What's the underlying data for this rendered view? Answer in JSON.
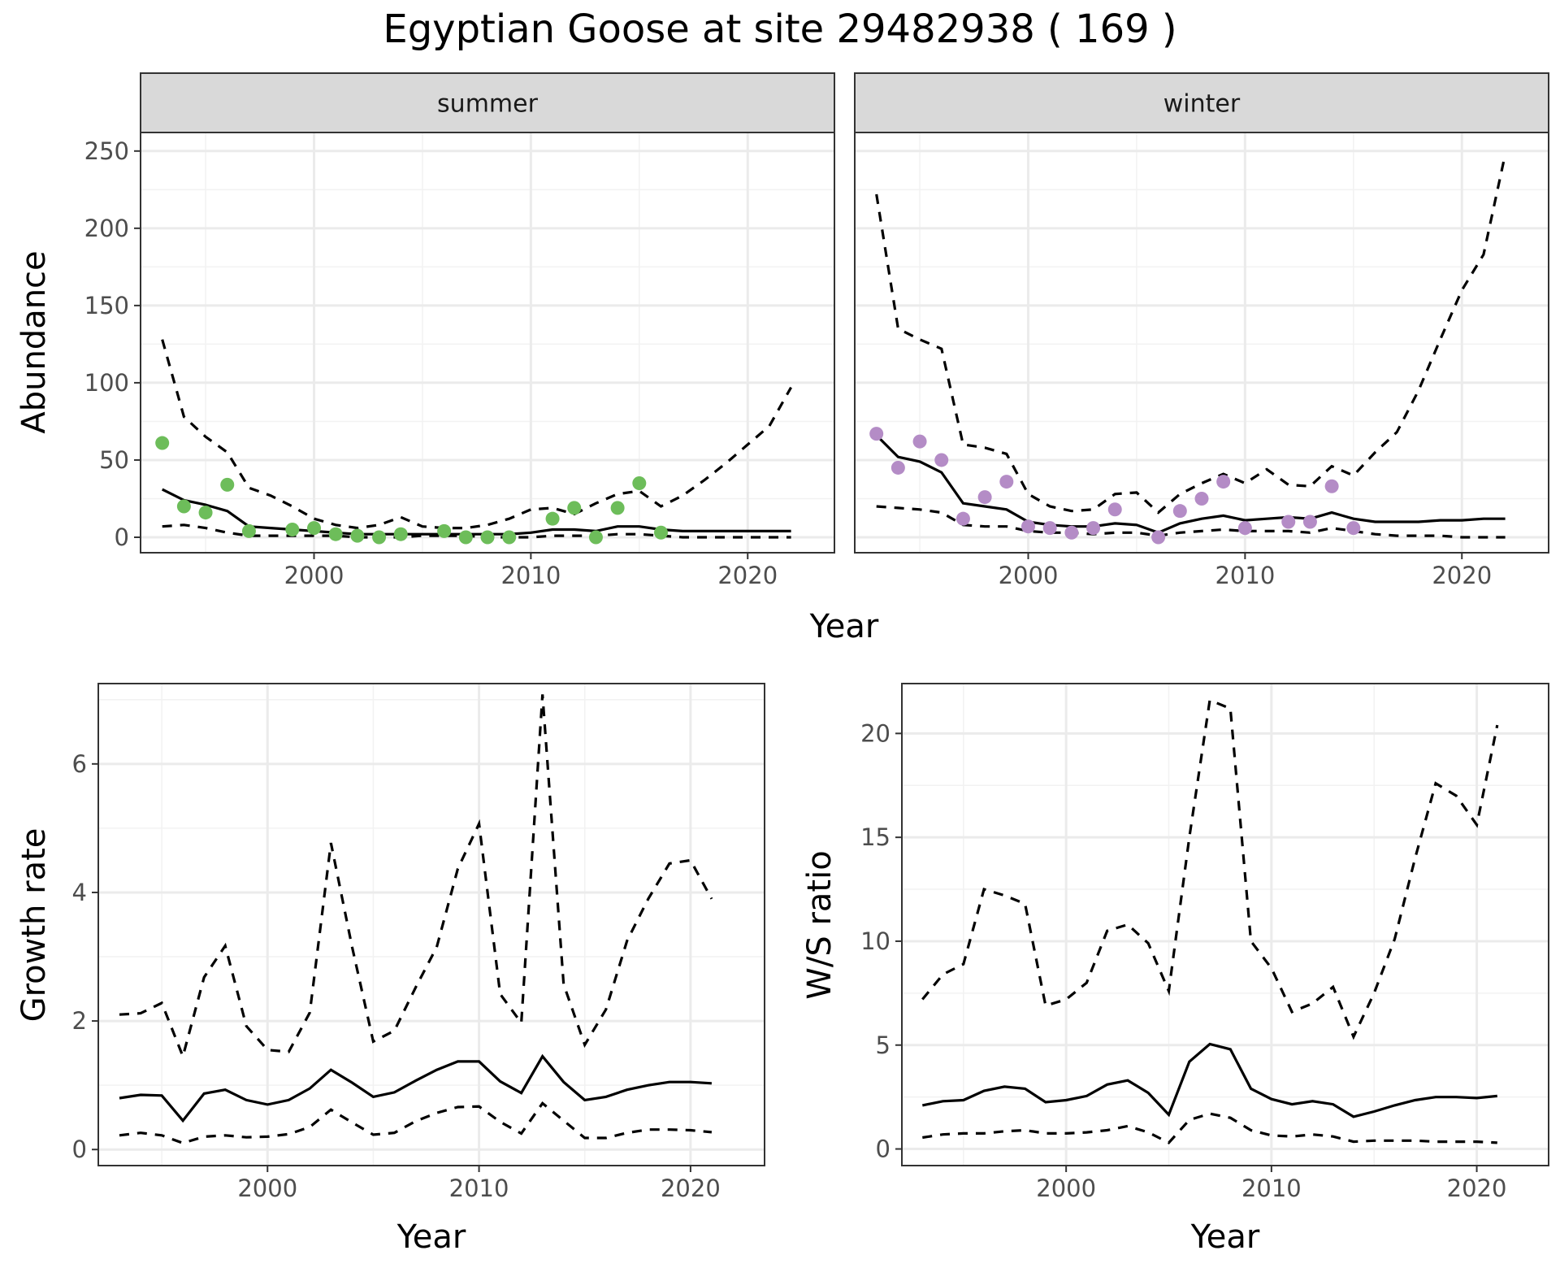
{
  "title": "Egyptian Goose at site 29482938 ( 169 )",
  "colors": {
    "summer_points": "#6dbd5a",
    "winter_points": "#b48cc6",
    "strip_fill": "#d9d9d9"
  },
  "chart_data": [
    {
      "id": "summer",
      "type": "line",
      "facet_label": "summer",
      "xlabel": "Year",
      "ylabel": "Abundance",
      "xlim": [
        1992,
        2024
      ],
      "ylim": [
        -10,
        262
      ],
      "xticks": [
        2000,
        2010,
        2020
      ],
      "yticks": [
        0,
        50,
        100,
        150,
        200,
        250
      ],
      "grid": true,
      "x": [
        1993,
        1994,
        1995,
        1996,
        1997,
        1998,
        1999,
        2000,
        2001,
        2002,
        2003,
        2004,
        2005,
        2006,
        2007,
        2008,
        2009,
        2010,
        2011,
        2012,
        2013,
        2014,
        2015,
        2016,
        2017,
        2018,
        2019,
        2020,
        2021,
        2022
      ],
      "series": [
        {
          "style": "solid",
          "values": [
            31,
            24,
            21,
            17,
            7,
            6,
            5,
            4,
            3,
            2,
            2,
            2,
            2,
            2,
            2,
            2,
            2,
            3,
            5,
            5,
            4,
            7,
            7,
            5,
            4,
            4,
            4,
            4,
            4,
            4
          ]
        },
        {
          "style": "dashed",
          "values": [
            128,
            78,
            65,
            55,
            32,
            27,
            20,
            12,
            8,
            6,
            8,
            13,
            7,
            6,
            6,
            8,
            12,
            18,
            19,
            15,
            22,
            28,
            30,
            20,
            27,
            37,
            48,
            60,
            72,
            97
          ]
        },
        {
          "style": "dashed",
          "values": [
            7,
            8,
            6,
            3,
            1,
            1,
            1,
            1,
            1,
            0,
            0,
            0,
            1,
            1,
            1,
            0,
            0,
            0,
            1,
            1,
            1,
            2,
            2,
            1,
            0,
            0,
            0,
            0,
            0,
            0
          ]
        }
      ],
      "points": {
        "x": [
          1993,
          1994,
          1995,
          1996,
          1997,
          1999,
          2000,
          2001,
          2002,
          2003,
          2004,
          2006,
          2007,
          2008,
          2009,
          2011,
          2012,
          2013,
          2014,
          2015,
          2016
        ],
        "y": [
          61,
          20,
          16,
          34,
          4,
          5,
          6,
          2,
          1,
          0,
          2,
          4,
          0,
          0,
          0,
          12,
          19,
          0,
          19,
          35,
          3
        ]
      }
    },
    {
      "id": "winter",
      "type": "line",
      "facet_label": "winter",
      "xlabel": "Year",
      "ylabel": "Abundance",
      "xlim": [
        1992,
        2024
      ],
      "ylim": [
        -10,
        262
      ],
      "xticks": [
        2000,
        2010,
        2020
      ],
      "yticks": [
        0,
        50,
        100,
        150,
        200,
        250
      ],
      "grid": true,
      "x": [
        1993,
        1994,
        1995,
        1996,
        1997,
        1998,
        1999,
        2000,
        2001,
        2002,
        2003,
        2004,
        2005,
        2006,
        2007,
        2008,
        2009,
        2010,
        2011,
        2012,
        2013,
        2014,
        2015,
        2016,
        2017,
        2018,
        2019,
        2020,
        2021,
        2022
      ],
      "series": [
        {
          "style": "solid",
          "values": [
            66,
            52,
            49,
            42,
            22,
            20,
            18,
            10,
            8,
            7,
            7,
            9,
            8,
            3,
            9,
            12,
            14,
            11,
            12,
            13,
            12,
            16,
            12,
            10,
            10,
            10,
            11,
            11,
            12,
            12
          ]
        },
        {
          "style": "dashed",
          "values": [
            222,
            135,
            128,
            122,
            60,
            58,
            54,
            28,
            20,
            17,
            18,
            28,
            29,
            16,
            28,
            35,
            41,
            35,
            44,
            34,
            33,
            46,
            40,
            55,
            68,
            95,
            128,
            160,
            183,
            248
          ]
        },
        {
          "style": "dashed",
          "values": [
            20,
            19,
            18,
            16,
            8,
            7,
            7,
            4,
            3,
            3,
            2,
            3,
            3,
            1,
            3,
            4,
            5,
            4,
            4,
            4,
            3,
            6,
            4,
            2,
            1,
            1,
            1,
            0,
            0,
            0
          ]
        }
      ],
      "points": {
        "x": [
          1993,
          1994,
          1995,
          1996,
          1997,
          1998,
          1999,
          2000,
          2001,
          2002,
          2003,
          2004,
          2006,
          2007,
          2008,
          2009,
          2010,
          2012,
          2013,
          2014,
          2015
        ],
        "y": [
          67,
          45,
          62,
          50,
          12,
          26,
          36,
          7,
          6,
          3,
          6,
          18,
          0,
          17,
          25,
          36,
          6,
          10,
          10,
          33,
          6
        ]
      }
    },
    {
      "id": "growth",
      "type": "line",
      "xlabel": "Year",
      "ylabel": "Growth rate",
      "xlim": [
        1992,
        2023.5
      ],
      "ylim": [
        -0.25,
        7.25
      ],
      "xticks": [
        2000,
        2010,
        2020
      ],
      "yticks": [
        0,
        2,
        4,
        6
      ],
      "grid": true,
      "x": [
        1993,
        1994,
        1995,
        1996,
        1997,
        1998,
        1999,
        2000,
        2001,
        2002,
        2003,
        2004,
        2005,
        2006,
        2007,
        2008,
        2009,
        2010,
        2011,
        2012,
        2013,
        2014,
        2015,
        2016,
        2017,
        2018,
        2019,
        2020,
        2021
      ],
      "series": [
        {
          "style": "solid",
          "values": [
            0.8,
            0.85,
            0.84,
            0.45,
            0.87,
            0.93,
            0.77,
            0.7,
            0.77,
            0.95,
            1.24,
            1.04,
            0.82,
            0.89,
            1.07,
            1.24,
            1.37,
            1.37,
            1.06,
            0.88,
            1.45,
            1.05,
            0.77,
            0.82,
            0.93,
            1.0,
            1.05,
            1.05,
            1.03
          ]
        },
        {
          "style": "dashed",
          "values": [
            2.1,
            2.12,
            2.28,
            1.45,
            2.68,
            3.17,
            1.92,
            1.55,
            1.52,
            2.13,
            4.77,
            3.15,
            1.68,
            1.85,
            2.52,
            3.15,
            4.37,
            5.07,
            2.42,
            1.97,
            7.08,
            2.57,
            1.63,
            2.18,
            3.25,
            3.9,
            4.45,
            4.5,
            3.9
          ]
        },
        {
          "style": "dashed",
          "values": [
            0.22,
            0.26,
            0.22,
            0.1,
            0.2,
            0.22,
            0.19,
            0.2,
            0.24,
            0.35,
            0.62,
            0.42,
            0.23,
            0.26,
            0.44,
            0.57,
            0.66,
            0.67,
            0.43,
            0.25,
            0.72,
            0.45,
            0.18,
            0.18,
            0.26,
            0.31,
            0.31,
            0.3,
            0.27
          ]
        }
      ]
    },
    {
      "id": "ratio",
      "type": "line",
      "xlabel": "Year",
      "ylabel": "W/S ratio",
      "xlim": [
        1992,
        2023.5
      ],
      "ylim": [
        -0.8,
        22.4
      ],
      "xticks": [
        2000,
        2010,
        2020
      ],
      "yticks": [
        0,
        5,
        10,
        15,
        20
      ],
      "grid": true,
      "x": [
        1993,
        1994,
        1995,
        1996,
        1997,
        1998,
        1999,
        2000,
        2001,
        2002,
        2003,
        2004,
        2005,
        2006,
        2007,
        2008,
        2009,
        2010,
        2011,
        2012,
        2013,
        2014,
        2015,
        2016,
        2017,
        2018,
        2019,
        2020,
        2021
      ],
      "series": [
        {
          "style": "solid",
          "values": [
            2.1,
            2.3,
            2.35,
            2.8,
            3.0,
            2.9,
            2.25,
            2.35,
            2.55,
            3.1,
            3.3,
            2.7,
            1.65,
            4.2,
            5.05,
            4.8,
            2.9,
            2.4,
            2.15,
            2.3,
            2.15,
            1.55,
            1.8,
            2.1,
            2.35,
            2.5,
            2.5,
            2.45,
            2.55
          ]
        },
        {
          "style": "dashed",
          "values": [
            7.2,
            8.4,
            8.9,
            12.5,
            12.2,
            11.8,
            6.9,
            7.2,
            8.0,
            10.5,
            10.8,
            9.9,
            7.6,
            15.0,
            21.6,
            21.2,
            10.0,
            8.7,
            6.6,
            7.0,
            7.8,
            5.4,
            7.5,
            10.1,
            14.0,
            17.6,
            17.0,
            15.6,
            20.4
          ]
        },
        {
          "style": "dashed",
          "values": [
            0.55,
            0.7,
            0.75,
            0.75,
            0.85,
            0.9,
            0.75,
            0.75,
            0.8,
            0.9,
            1.1,
            0.8,
            0.3,
            1.4,
            1.7,
            1.5,
            0.9,
            0.65,
            0.6,
            0.7,
            0.6,
            0.35,
            0.4,
            0.4,
            0.4,
            0.35,
            0.35,
            0.35,
            0.3
          ]
        }
      ]
    }
  ]
}
